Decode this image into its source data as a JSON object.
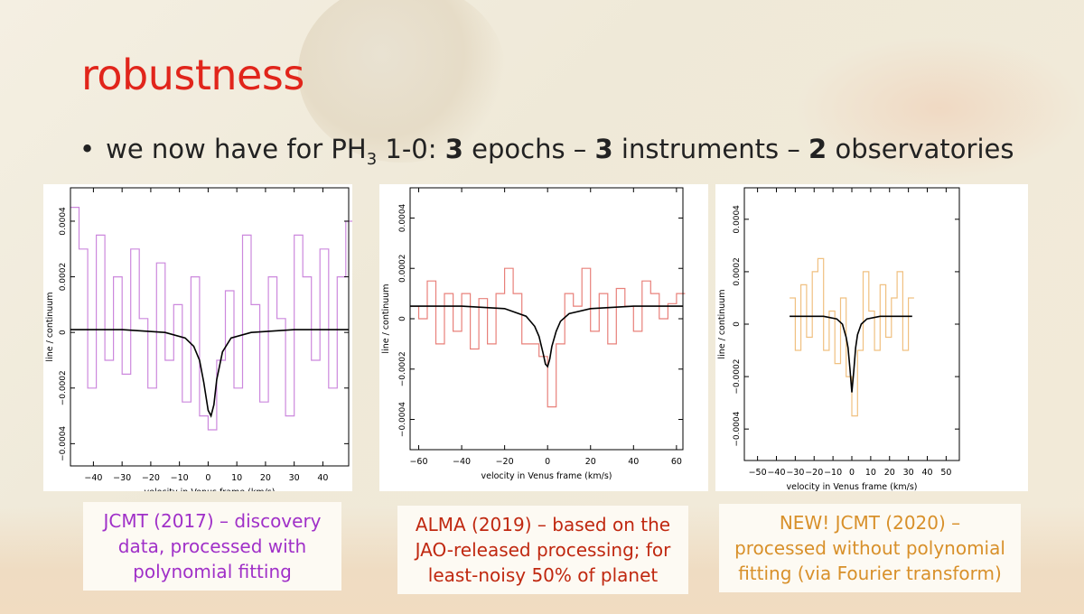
{
  "slide": {
    "title": "robustness",
    "bullet": {
      "prefix": "we now have for PH",
      "subscript": "3",
      "mid": " 1-0:  ",
      "n1": "3",
      "t1": " epochs – ",
      "n2": "3",
      "t2": " instruments – ",
      "n3": "2",
      "t3": " observatories"
    }
  },
  "captions": [
    {
      "lines": [
        "JCMT (2017) – discovery",
        "data, processed with",
        "polynomial fitting"
      ],
      "color": "#a030c8"
    },
    {
      "lines": [
        "ALMA (2019) – based on the",
        "JAO-released processing; for",
        "least-noisy 50% of planet"
      ],
      "color": "#c02810"
    },
    {
      "lines": [
        "NEW! JCMT (2020) –",
        "processed without polynomial",
        "fitting (via Fourier transform)"
      ],
      "color": "#d8902a"
    }
  ],
  "chart_data": [
    {
      "type": "line",
      "title": "",
      "xlabel": "velocity in Venus frame (km/s)",
      "ylabel": "line / continuum",
      "xlim": [
        -48,
        49
      ],
      "ylim": [
        -0.00048,
        0.00052
      ],
      "xticks": [
        -40,
        -30,
        -20,
        -10,
        0,
        10,
        20,
        30,
        40
      ],
      "xtick_labels": [
        "−40",
        "−30",
        "−20",
        "−10",
        "0",
        "10",
        "20",
        "30",
        "40"
      ],
      "yticks": [
        -0.0004,
        -0.0002,
        0,
        0.0002,
        0.0004
      ],
      "ytick_labels": [
        "−0.0004",
        "−0.0002",
        "0",
        "0.0002",
        "0.0004"
      ],
      "series": [
        {
          "style": "histogram",
          "color": "#cc88dd",
          "x": [
            -48,
            -45,
            -42,
            -39,
            -36,
            -33,
            -30,
            -27,
            -24,
            -21,
            -18,
            -15,
            -12,
            -9,
            -6,
            -3,
            0,
            3,
            6,
            9,
            12,
            15,
            18,
            21,
            24,
            27,
            30,
            33,
            36,
            39,
            42,
            45,
            48
          ],
          "y": [
            0.00045,
            0.0003,
            -0.0002,
            0.00035,
            -0.0001,
            0.0002,
            -0.00015,
            0.0003,
            5e-05,
            -0.0002,
            0.00025,
            -0.0001,
            0.0001,
            -0.00025,
            0.0002,
            -0.0003,
            -0.00035,
            -0.0001,
            0.00015,
            -0.0002,
            0.00035,
            0.0001,
            -0.00025,
            0.0002,
            5e-05,
            -0.0003,
            0.00035,
            0.0002,
            -0.0001,
            0.0003,
            -0.0002,
            0.0002,
            0.0004
          ]
        },
        {
          "style": "line",
          "color": "#000000",
          "x": [
            -48,
            -30,
            -15,
            -8,
            -5,
            -3,
            -1.5,
            0,
            1,
            2,
            3,
            5,
            8,
            15,
            30,
            49
          ],
          "y": [
            1e-05,
            1e-05,
            0.0,
            -2e-05,
            -5e-05,
            -0.0001,
            -0.00018,
            -0.00028,
            -0.0003,
            -0.00026,
            -0.00017,
            -7e-05,
            -2e-05,
            0.0,
            1e-05,
            1e-05
          ]
        }
      ]
    },
    {
      "type": "line",
      "title": "",
      "xlabel": "velocity in Venus frame (km/s)",
      "ylabel": "line / continuum",
      "xlim": [
        -64,
        63
      ],
      "ylim": [
        -0.00052,
        0.00052
      ],
      "xticks": [
        -60,
        -40,
        -20,
        0,
        20,
        40,
        60
      ],
      "xtick_labels": [
        "−60",
        "−40",
        "−20",
        "0",
        "20",
        "40",
        "60"
      ],
      "yticks": [
        -0.0004,
        -0.0002,
        0,
        0.0002,
        0.0004
      ],
      "ytick_labels": [
        "−0.0004",
        "−0.0002",
        "0",
        "0.0002",
        "0.0004"
      ],
      "series": [
        {
          "style": "histogram",
          "color": "#e8807a",
          "x": [
            -64,
            -60,
            -56,
            -52,
            -48,
            -44,
            -40,
            -36,
            -32,
            -28,
            -24,
            -20,
            -16,
            -12,
            -8,
            -4,
            0,
            4,
            8,
            12,
            16,
            20,
            24,
            28,
            32,
            36,
            40,
            44,
            48,
            52,
            56,
            60
          ],
          "y": [
            5e-05,
            0.0,
            0.00015,
            -0.0001,
            0.0001,
            -5e-05,
            0.0001,
            -0.00012,
            8e-05,
            -0.0001,
            0.0001,
            0.0002,
            0.0001,
            -0.0001,
            -0.0001,
            -0.00015,
            -0.00035,
            -0.0001,
            0.0001,
            5e-05,
            0.0002,
            -5e-05,
            0.0001,
            -0.0001,
            0.00012,
            5e-05,
            -5e-05,
            0.00015,
            0.0001,
            0.0,
            6e-05,
            0.0001
          ]
        },
        {
          "style": "line",
          "color": "#000000",
          "x": [
            -64,
            -40,
            -20,
            -10,
            -6,
            -4,
            -2,
            -1,
            0,
            1,
            2,
            4,
            6,
            10,
            20,
            40,
            63
          ],
          "y": [
            5e-05,
            5e-05,
            4e-05,
            1e-05,
            -3e-05,
            -7e-05,
            -0.00014,
            -0.00018,
            -0.00019,
            -0.00016,
            -0.00011,
            -5e-05,
            -1e-05,
            2e-05,
            4e-05,
            5e-05,
            5e-05
          ]
        }
      ]
    },
    {
      "type": "line",
      "title": "",
      "xlabel": "velocity in Venus frame (km/s)",
      "ylabel": "line / continuum",
      "xlim": [
        -57,
        57
      ],
      "ylim": [
        -0.00052,
        0.00052
      ],
      "xticks": [
        -50,
        -40,
        -30,
        -20,
        -10,
        0,
        10,
        20,
        30,
        40,
        50
      ],
      "xtick_labels": [
        "−50",
        "−40",
        "−30",
        "−20",
        "−10",
        "0",
        "10",
        "20",
        "30",
        "40",
        "50"
      ],
      "yticks": [
        -0.0004,
        -0.0002,
        0,
        0.0002,
        0.0004
      ],
      "ytick_labels": [
        "−0.0004",
        "−0.0002",
        "0",
        "0.0002",
        "0.0004"
      ],
      "series": [
        {
          "style": "histogram",
          "color": "#f0c080",
          "x": [
            -33,
            -30,
            -27,
            -24,
            -21,
            -18,
            -15,
            -12,
            -9,
            -6,
            -3,
            0,
            3,
            6,
            9,
            12,
            15,
            18,
            21,
            24,
            27,
            30
          ],
          "y": [
            0.0001,
            -0.0001,
            0.00015,
            -5e-05,
            0.0002,
            0.00025,
            -0.0001,
            5e-05,
            -0.00015,
            0.0001,
            -0.0002,
            -0.00035,
            -0.0001,
            0.0002,
            5e-05,
            -0.0001,
            0.00015,
            -5e-05,
            0.0001,
            0.0002,
            -0.0001,
            0.0001
          ]
        },
        {
          "style": "line",
          "color": "#000000",
          "x": [
            -33,
            -15,
            -8,
            -5,
            -3,
            -2,
            -1,
            0,
            1,
            2,
            3,
            5,
            8,
            15,
            32
          ],
          "y": [
            3e-05,
            3e-05,
            2e-05,
            0.0,
            -5e-05,
            -9e-05,
            -0.00017,
            -0.00026,
            -0.00018,
            -9e-05,
            -4e-05,
            0.0,
            2e-05,
            3e-05,
            3e-05
          ]
        }
      ]
    }
  ]
}
